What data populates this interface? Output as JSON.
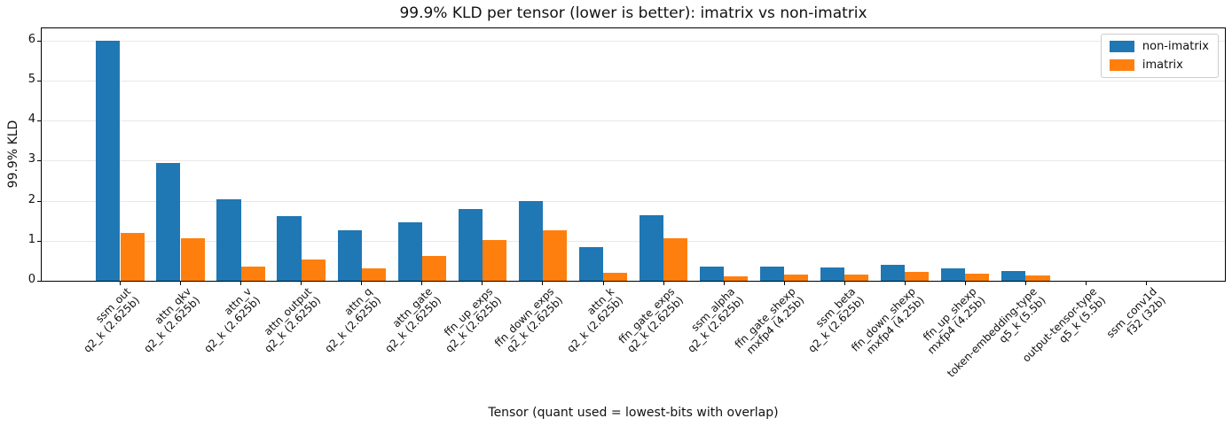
{
  "chart_data": {
    "type": "bar",
    "title": "99.9% KLD per tensor (lower is better): imatrix vs non-imatrix",
    "xlabel": "Tensor (quant used = lowest-bits with overlap)",
    "ylabel": "99.9% KLD",
    "ylim": [
      0,
      6.3
    ],
    "yticks": [
      0,
      1,
      2,
      3,
      4,
      5,
      6
    ],
    "grid": true,
    "grid_color": "#e8e8e8",
    "background_color": "#ffffff",
    "legend_position": "upper-right",
    "categories": [
      {
        "tensor": "ssm_out",
        "quant": "q2_k (2.625b)"
      },
      {
        "tensor": "attn_qkv",
        "quant": "q2_k (2.625b)"
      },
      {
        "tensor": "attn_v",
        "quant": "q2_k (2.625b)"
      },
      {
        "tensor": "attn_output",
        "quant": "q2_k (2.625b)"
      },
      {
        "tensor": "attn_q",
        "quant": "q2_k (2.625b)"
      },
      {
        "tensor": "attn_gate",
        "quant": "q2_k (2.625b)"
      },
      {
        "tensor": "ffn_up_exps",
        "quant": "q2_k (2.625b)"
      },
      {
        "tensor": "ffn_down_exps",
        "quant": "q2_k (2.625b)"
      },
      {
        "tensor": "attn_k",
        "quant": "q2_k (2.625b)"
      },
      {
        "tensor": "ffn_gate_exps",
        "quant": "q2_k (2.625b)"
      },
      {
        "tensor": "ssm_alpha",
        "quant": "q2_k (2.625b)"
      },
      {
        "tensor": "ffn_gate_shexp",
        "quant": "mxfp4 (4.25b)"
      },
      {
        "tensor": "ssm_beta",
        "quant": "q2_k (2.625b)"
      },
      {
        "tensor": "ffn_down_shexp",
        "quant": "mxfp4 (4.25b)"
      },
      {
        "tensor": "ffn_up_shexp",
        "quant": "mxfp4 (4.25b)"
      },
      {
        "tensor": "token-embedding-type",
        "quant": "q5_k (5.5b)"
      },
      {
        "tensor": "output-tensor-type",
        "quant": "q5_k (5.5b)"
      },
      {
        "tensor": "ssm_conv1d",
        "quant": "f32 (32b)"
      }
    ],
    "series": [
      {
        "name": "non-imatrix",
        "color": "#1f77b4",
        "values": [
          5.99,
          2.95,
          2.03,
          1.62,
          1.27,
          1.47,
          1.79,
          1.98,
          0.84,
          1.64,
          0.35,
          0.35,
          0.33,
          0.39,
          0.3,
          0.24,
          0,
          0
        ]
      },
      {
        "name": "imatrix",
        "color": "#ff7f0e",
        "values": [
          1.19,
          1.07,
          0.35,
          0.54,
          0.32,
          0.62,
          1.02,
          1.27,
          0.2,
          1.06,
          0.12,
          0.15,
          0.16,
          0.23,
          0.17,
          0.13,
          0,
          0
        ]
      }
    ]
  }
}
